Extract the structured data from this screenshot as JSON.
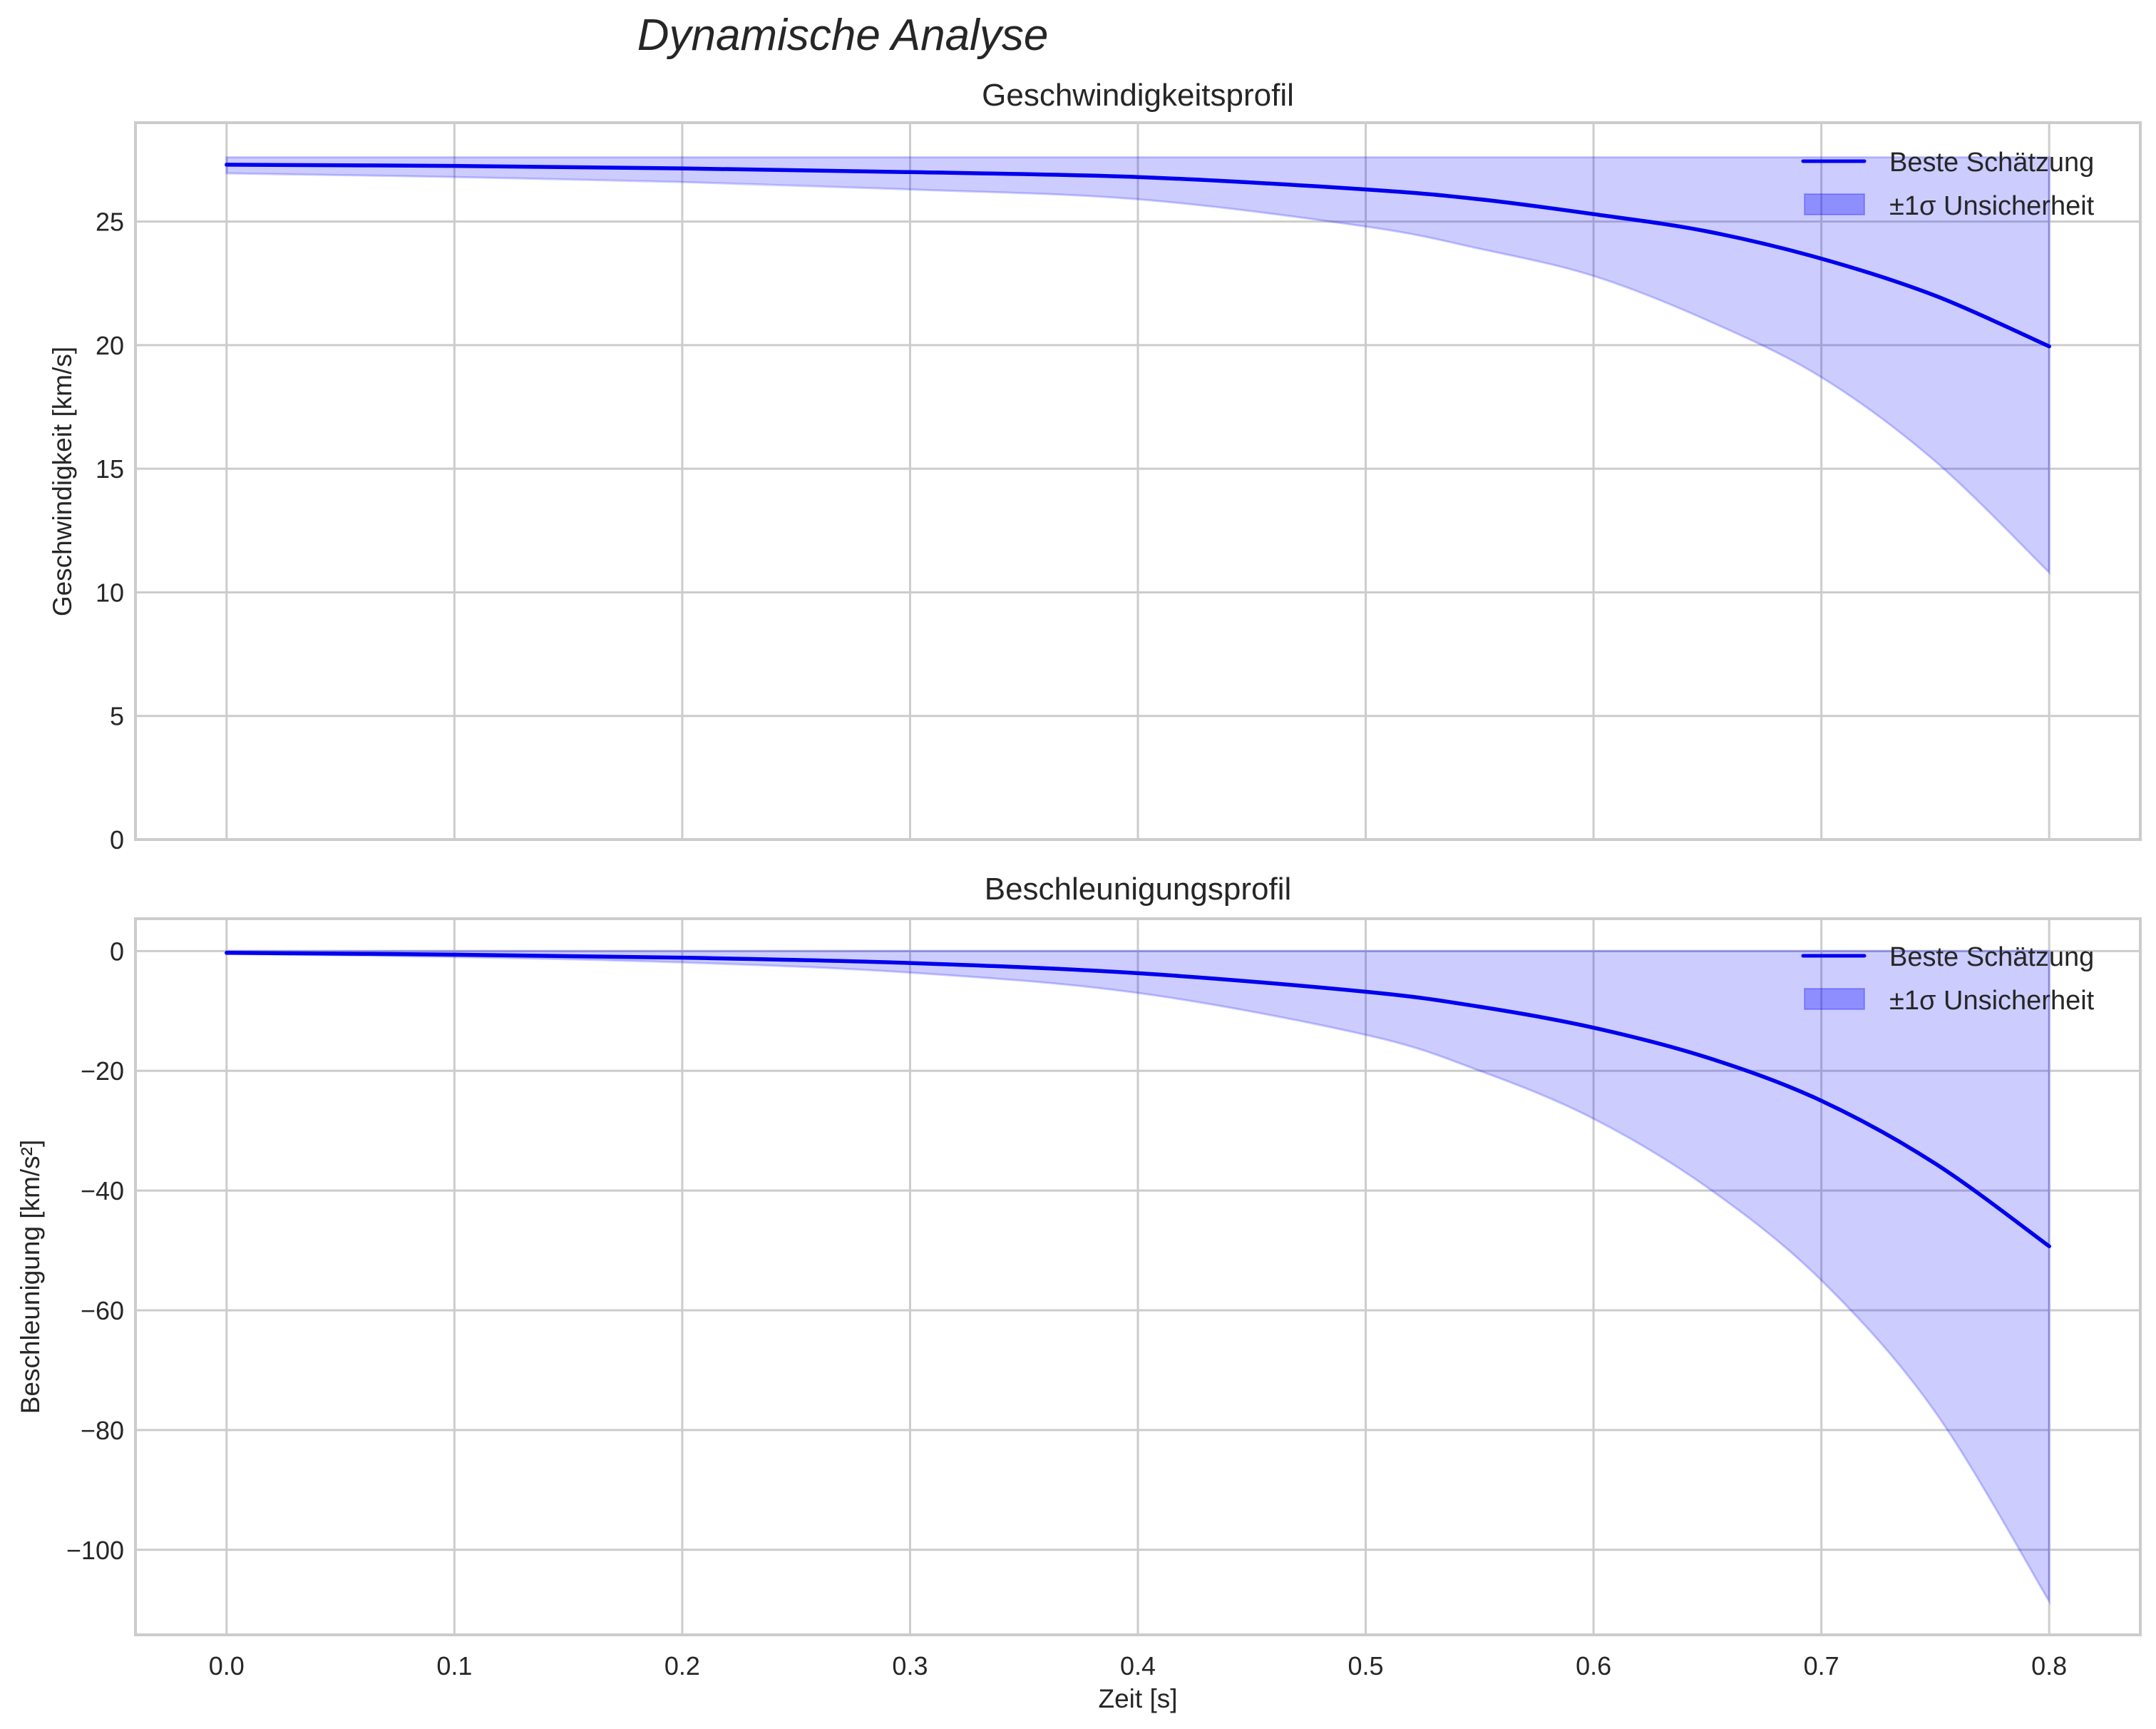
{
  "figure": {
    "suptitle": "Dynamische Analyse",
    "xlabel": "Zeit [s]",
    "colors": {
      "line": "#0000ee",
      "band_fill": "#0000ff",
      "band_alpha": 0.2,
      "grid": "#cccccc",
      "frame": "#cccccc",
      "text": "#262626"
    }
  },
  "chart_data": [
    {
      "type": "line",
      "title": "Geschwindigkeitsprofil",
      "xlabel": "",
      "ylabel": "Geschwindigkeit [km/s]",
      "xlim": [
        -0.04,
        0.84
      ],
      "ylim": [
        0,
        29.0
      ],
      "xticks": [
        "0.0",
        "0.1",
        "0.2",
        "0.3",
        "0.4",
        "0.5",
        "0.6",
        "0.7",
        "0.8"
      ],
      "yticks": [
        "0",
        "5",
        "10",
        "15",
        "20",
        "25"
      ],
      "ytick_values": [
        0,
        5,
        10,
        15,
        20,
        25
      ],
      "grid": true,
      "legend": {
        "position": "upper right",
        "entries": [
          "Beste Schätzung",
          "±1σ Unsicherheit"
        ]
      },
      "x": [
        0.0,
        0.1,
        0.2,
        0.3,
        0.4,
        0.5,
        0.55,
        0.6,
        0.65,
        0.7,
        0.75,
        0.8
      ],
      "series": [
        {
          "name": "Beste Schätzung",
          "values": [
            27.3,
            27.25,
            27.15,
            27.0,
            26.8,
            26.3,
            25.9,
            25.3,
            24.6,
            23.5,
            22.0,
            19.95
          ]
        },
        {
          "name": "±1σ Unsicherheit (oben)",
          "values": [
            27.6,
            27.6,
            27.6,
            27.6,
            27.6,
            27.6,
            27.6,
            27.6,
            27.6,
            27.6,
            27.6,
            27.6
          ]
        },
        {
          "name": "±1σ Unsicherheit (unten)",
          "values": [
            26.95,
            26.8,
            26.6,
            26.3,
            25.9,
            24.8,
            23.9,
            22.8,
            21.0,
            18.7,
            15.3,
            10.8
          ]
        }
      ]
    },
    {
      "type": "line",
      "title": "Beschleunigungsprofil",
      "xlabel": "Zeit [s]",
      "ylabel": "Beschleunigung [km/s²]",
      "xlim": [
        -0.04,
        0.84
      ],
      "ylim": [
        -114.2,
        5.4
      ],
      "xticks": [
        "0.0",
        "0.1",
        "0.2",
        "0.3",
        "0.4",
        "0.5",
        "0.6",
        "0.7",
        "0.8"
      ],
      "yticks": [
        "0",
        "−20",
        "−40",
        "−60",
        "−80",
        "−100"
      ],
      "ytick_values": [
        0,
        -20,
        -40,
        -60,
        -80,
        -100
      ],
      "grid": true,
      "legend": {
        "position": "upper right",
        "entries": [
          "Beste Schätzung",
          "±1σ Unsicherheit"
        ]
      },
      "x": [
        0.0,
        0.1,
        0.2,
        0.3,
        0.4,
        0.5,
        0.55,
        0.6,
        0.65,
        0.7,
        0.75,
        0.8
      ],
      "series": [
        {
          "name": "Beste Schätzung",
          "values": [
            -0.3,
            -0.6,
            -1.1,
            -2.0,
            -3.7,
            -6.8,
            -9.3,
            -12.8,
            -17.8,
            -25.0,
            -35.5,
            -49.3
          ]
        },
        {
          "name": "±1σ Unsicherheit (oben)",
          "values": [
            0.0,
            0.0,
            0.0,
            0.0,
            0.0,
            0.0,
            0.0,
            0.0,
            0.0,
            0.0,
            0.0,
            0.0
          ]
        },
        {
          "name": "±1σ Unsicherheit (unten)",
          "values": [
            -0.5,
            -1.0,
            -1.9,
            -3.6,
            -7.0,
            -14.0,
            -20.0,
            -28.0,
            -39.5,
            -55.0,
            -77.0,
            -108.6
          ]
        }
      ]
    }
  ]
}
